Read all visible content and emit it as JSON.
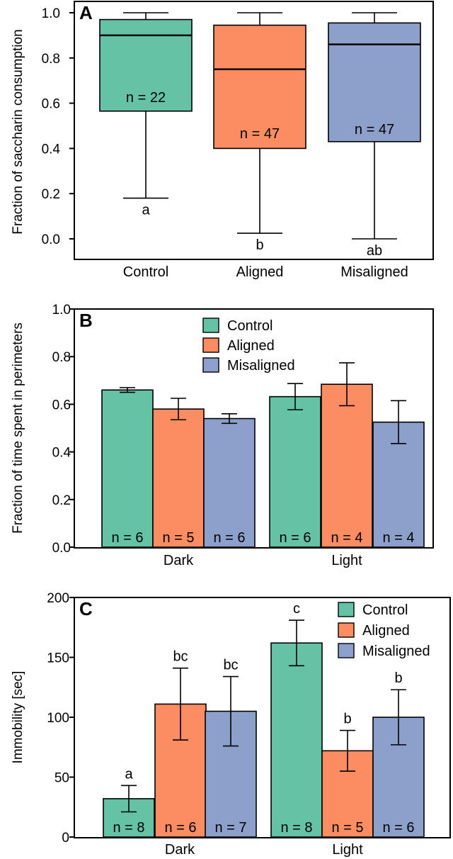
{
  "colors": {
    "Control": "#66c2a5",
    "Aligned": "#fc8d62",
    "Misaligned": "#8da0cb"
  },
  "chart_data": [
    {
      "type": "box",
      "panel_label": "A",
      "ylabel": "Fraction of saccharin consumption",
      "xlabel": "",
      "ylim": [
        -0.07,
        1.05
      ],
      "yticks": [
        "0.0",
        "0.2",
        "0.4",
        "0.6",
        "0.8",
        "1.0"
      ],
      "ytick_values": [
        0.0,
        0.2,
        0.4,
        0.6,
        0.8,
        1.0
      ],
      "categories": [
        "Control",
        "Aligned",
        "Misaligned"
      ],
      "boxes": [
        {
          "name": "Control",
          "min": 0.18,
          "q1": 0.565,
          "median": 0.9,
          "q3": 0.97,
          "max": 1.0,
          "n_label": "n = 22",
          "letter": "a"
        },
        {
          "name": "Aligned",
          "min": 0.025,
          "q1": 0.4,
          "median": 0.75,
          "q3": 0.945,
          "max": 1.0,
          "n_label": "n = 47",
          "letter": "b"
        },
        {
          "name": "Misaligned",
          "min": 0.0,
          "q1": 0.43,
          "median": 0.86,
          "q3": 0.955,
          "max": 1.0,
          "n_label": "n = 47",
          "letter": "ab"
        }
      ],
      "grid": false
    },
    {
      "type": "bar",
      "panel_label": "B",
      "ylabel": "Fraction of time spent in perimeters",
      "xlabel": "",
      "ylim": [
        0.0,
        1.0
      ],
      "yticks": [
        "0.0",
        "0.2",
        "0.4",
        "0.6",
        "0.8",
        "1.0"
      ],
      "ytick_values": [
        0.0,
        0.2,
        0.4,
        0.6,
        0.8,
        1.0
      ],
      "categories": [
        "Dark",
        "Light"
      ],
      "series": [
        {
          "name": "Control",
          "values": [
            0.66,
            0.632
          ],
          "errors": [
            0.01,
            0.055
          ],
          "n_labels": [
            "n = 6",
            "n = 6"
          ]
        },
        {
          "name": "Aligned",
          "values": [
            0.58,
            0.684
          ],
          "errors": [
            0.045,
            0.09
          ],
          "n_labels": [
            "n = 5",
            "n = 4"
          ]
        },
        {
          "name": "Misaligned",
          "values": [
            0.54,
            0.525
          ],
          "errors": [
            0.02,
            0.09
          ],
          "n_labels": [
            "n = 6",
            "n = 4"
          ]
        }
      ],
      "legend": {
        "placement": "top-center",
        "entries": [
          "Control",
          "Aligned",
          "Misaligned"
        ]
      },
      "grid": false
    },
    {
      "type": "bar",
      "panel_label": "C",
      "ylabel": "Immobility [sec]",
      "xlabel": "",
      "ylim": [
        0,
        200
      ],
      "yticks": [
        "0",
        "50",
        "100",
        "150",
        "200"
      ],
      "ytick_values": [
        0,
        50,
        100,
        150,
        200
      ],
      "categories": [
        "Dark",
        "Light"
      ],
      "series": [
        {
          "name": "Control",
          "values": [
            32,
            162
          ],
          "errors": [
            11,
            19
          ],
          "n_labels": [
            "n = 8",
            "n = 8"
          ],
          "letters": [
            "a",
            "c"
          ]
        },
        {
          "name": "Aligned",
          "values": [
            111,
            72
          ],
          "errors": [
            30,
            17
          ],
          "n_labels": [
            "n = 6",
            "n = 5"
          ],
          "letters": [
            "bc",
            "b"
          ]
        },
        {
          "name": "Misaligned",
          "values": [
            105,
            100
          ],
          "errors": [
            29,
            23
          ],
          "n_labels": [
            "n = 7",
            "n = 6"
          ],
          "letters": [
            "bc",
            "b"
          ]
        }
      ],
      "legend": {
        "placement": "top-right",
        "entries": [
          "Control",
          "Aligned",
          "Misaligned"
        ]
      },
      "grid": false
    }
  ]
}
